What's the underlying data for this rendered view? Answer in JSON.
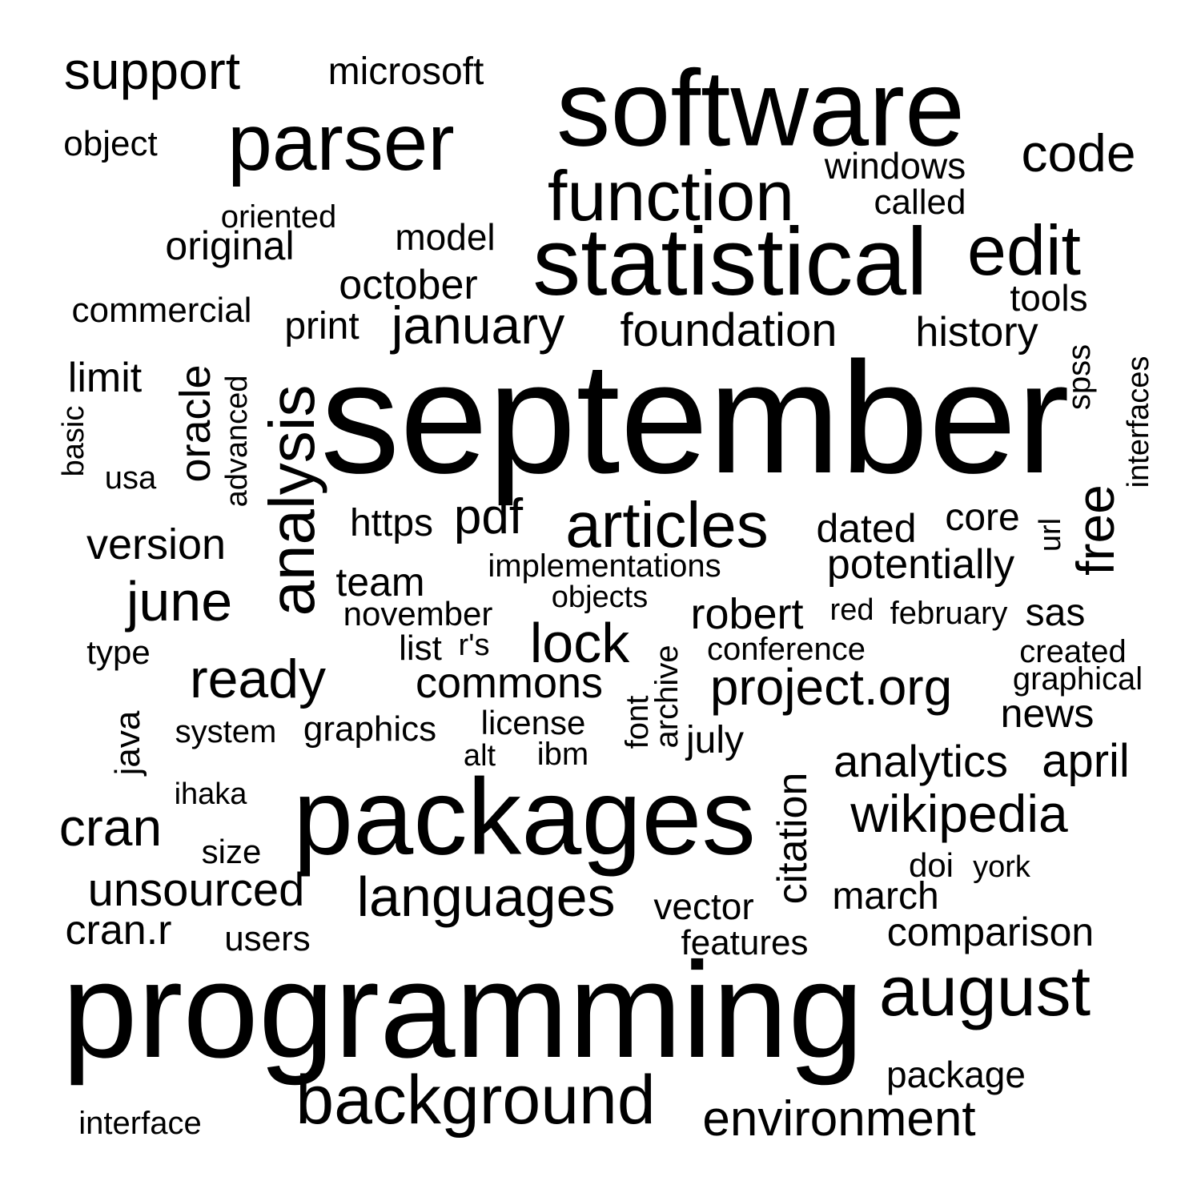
{
  "text_color": "#000000",
  "background_color": "#ffffff",
  "words": {
    "september": "september",
    "programming": "programming",
    "packages": "packages",
    "software": "software",
    "statistical": "statistical",
    "parser": "parser",
    "function": "function",
    "analysis": "analysis",
    "articles": "articles",
    "august": "august",
    "background": "background",
    "edit": "edit",
    "languages": "languages",
    "wikipedia": "wikipedia",
    "january": "january",
    "ready": "ready",
    "lock": "lock",
    "project_org": "project.org",
    "june": "june",
    "environment": "environment",
    "free": "free",
    "code": "code",
    "cran": "cran",
    "support": "support",
    "foundation": "foundation",
    "unsourced": "unsourced",
    "commons": "commons",
    "analytics": "analytics",
    "april": "april",
    "citation": "citation",
    "history": "history",
    "potentially": "potentially",
    "pdf": "pdf",
    "oracle": "oracle",
    "version": "version",
    "comparison": "comparison",
    "cran_r": "cran.r",
    "robert": "robert",
    "october": "october",
    "dated": "dated",
    "original": "original",
    "limit": "limit",
    "windows": "windows",
    "microsoft": "microsoft",
    "team": "team",
    "core": "core",
    "march": "march",
    "news": "news",
    "model": "model",
    "https": "https",
    "sas": "sas",
    "package": "package",
    "vector": "vector",
    "print": "print",
    "object": "object",
    "commercial": "commercial",
    "features": "features",
    "graphics": "graphics",
    "users": "users",
    "license": "license",
    "july": "july",
    "tools": "tools",
    "called": "called",
    "november": "november",
    "implementations": "implementations",
    "interface": "interface",
    "system": "system",
    "size": "size",
    "conference": "conference",
    "july2": "",
    "doi": "doi",
    "type": "type",
    "oriented": "oriented",
    "objects": "objects",
    "red": "red",
    "february": "february",
    "created": "created",
    "graphical": "graphical",
    "list": "list",
    "rs": "r's",
    "ibm": "ibm",
    "alt": "alt",
    "ihaka": "ihaka",
    "usa": "usa",
    "york": "york",
    "java": "java",
    "basic": "basic",
    "advanced": "advanced",
    "spss": "spss",
    "interfaces": "interfaces",
    "url": "url",
    "archive": "archive",
    "font": "font"
  }
}
